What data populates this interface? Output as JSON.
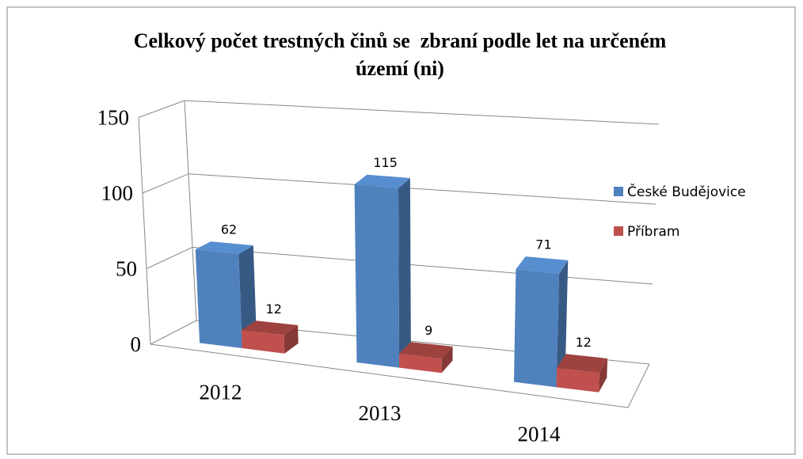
{
  "chart_data": {
    "type": "bar3d",
    "title": "Celkový počet trestných činů se  zbraní podle let na určeném území (ni)",
    "categories": [
      "2012",
      "2013",
      "2014"
    ],
    "series": [
      {
        "name": "České Budějovice",
        "color": "#4f81bd",
        "values": [
          62,
          115,
          71
        ]
      },
      {
        "name": "Příbram",
        "color": "#c0504d",
        "values": [
          12,
          9,
          12
        ]
      }
    ],
    "ylim": [
      0,
      150
    ],
    "yticks": [
      0,
      50,
      100,
      150
    ],
    "grid": true,
    "legend": "right"
  }
}
